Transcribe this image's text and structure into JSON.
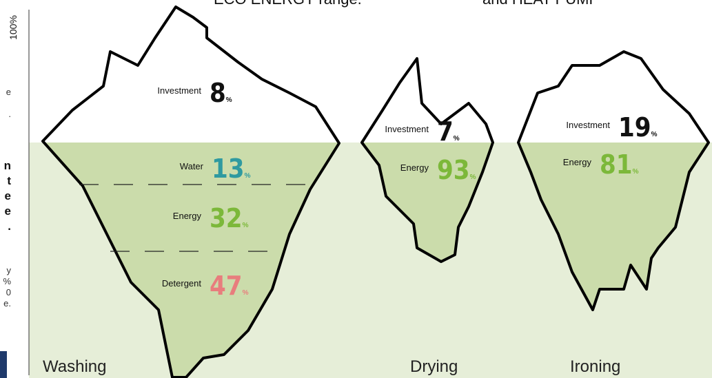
{
  "header": {
    "lines": [
      "ECO ENERGY range.",
      "and HEAT PUMP"
    ]
  },
  "axis_label": "100%",
  "unit": "%",
  "left_fragments": {
    "top": [
      "e",
      "."
    ],
    "bold": [
      "n",
      "t",
      "e",
      "e",
      "."
    ],
    "small": [
      "y",
      "%",
      "0",
      "e."
    ]
  },
  "icebergs": [
    {
      "name": "Washing",
      "parts": [
        {
          "label": "Investment",
          "value": 8,
          "color": "#111111"
        },
        {
          "label": "Water",
          "value": 13,
          "color": "#2f9aa0"
        },
        {
          "label": "Energy",
          "value": 32,
          "color": "#7cb83a"
        },
        {
          "label": "Detergent",
          "value": 47,
          "color": "#e87d7d"
        }
      ]
    },
    {
      "name": "Drying",
      "parts": [
        {
          "label": "Investment",
          "value": 7,
          "color": "#111111"
        },
        {
          "label": "Energy",
          "value": 93,
          "color": "#7cb83a"
        }
      ]
    },
    {
      "name": "Ironing",
      "parts": [
        {
          "label": "Investment",
          "value": 19,
          "color": "#111111"
        },
        {
          "label": "Energy",
          "value": 81,
          "color": "#7cb83a"
        }
      ]
    }
  ]
}
